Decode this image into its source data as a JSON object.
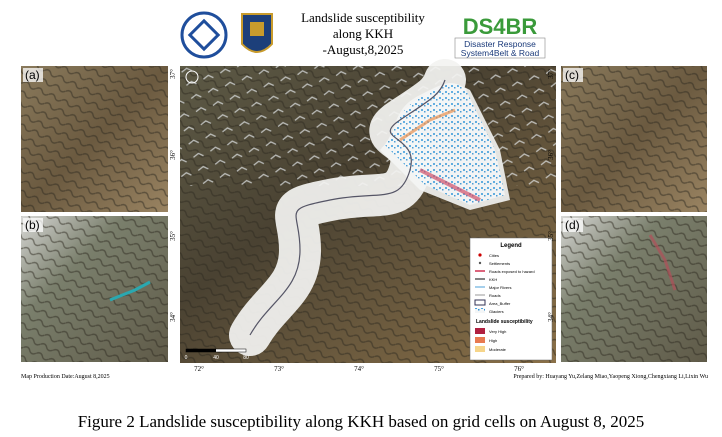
{
  "header": {
    "title": [
      "Landslide susceptibility",
      "along KKH",
      "-August,8,2025"
    ],
    "logo": {
      "name": "DS4BR",
      "line1": "Disaster Response",
      "line2": "System4Belt & Road"
    }
  },
  "panels": [
    "(a)",
    "(b)",
    "(c)",
    "(d)"
  ],
  "map": {
    "latitudes": [
      "37°",
      "36°",
      "35°",
      "34°"
    ],
    "longitudes": [
      "72°",
      "73°",
      "74°",
      "75°",
      "76°"
    ],
    "scale": [
      "0",
      "40",
      "80"
    ],
    "legend": {
      "title": "Legend",
      "items": [
        "Cities",
        "Settlements",
        "Roads exposed to hazard",
        "KKH",
        "Major Rivers",
        "Roads",
        "Area_Buffer",
        "Glaciers"
      ],
      "susceptibility_title": "Landslide susceptibility",
      "classes": [
        "Very High",
        "High",
        "Moderate"
      ]
    }
  },
  "footer": {
    "date": "Map Production Date:August 8,2025",
    "prepared": "Prepared by: Huayang Yu,Zelang Miao,Yaopeng Xiong,Chengxiang Li,Lixin Wu"
  },
  "caption": "Figure 2 Landslide susceptibility along KKH based on grid cells on August 8, 2025"
}
